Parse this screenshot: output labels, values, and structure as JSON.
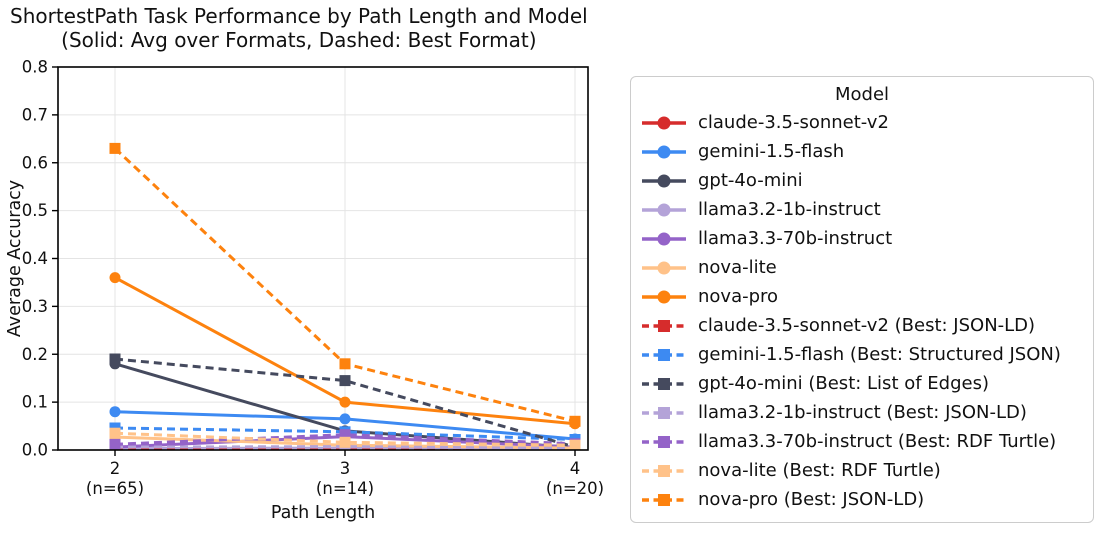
{
  "title": {
    "line1": "ShortestPath Task Performance by Path Length and Model",
    "line2": "(Solid: Avg over Formats, Dashed: Best Format)"
  },
  "chart_data": {
    "type": "line",
    "title": "ShortestPath Task Performance by Path Length and Model (Solid: Avg over Formats, Dashed: Best Format)",
    "xlabel": "Path Length",
    "ylabel": "Average Accuracy",
    "x": [
      2,
      3,
      4
    ],
    "x_tick_labels": [
      {
        "value": "2",
        "n": "(n=65)"
      },
      {
        "value": "3",
        "n": "(n=14)"
      },
      {
        "value": "4",
        "n": "(n=20)"
      }
    ],
    "ylim": [
      0.0,
      0.8
    ],
    "yticks": [
      0.0,
      0.1,
      0.2,
      0.3,
      0.4,
      0.5,
      0.6,
      0.7,
      0.8
    ],
    "grid": true,
    "legend": {
      "title": "Model",
      "position": "right"
    },
    "colors": {
      "claude-3.5-sonnet-v2": "#d62c2c",
      "gemini-1.5-flash": "#3d8af2",
      "gpt-4o-mini": "#454a5e",
      "llama3.2-1b-instruct": "#b4a3d8",
      "llama3.3-70b-instruct": "#9463c8",
      "nova-lite": "#ffc289",
      "nova-pro": "#fd820e"
    },
    "series": [
      {
        "label": "claude-3.5-sonnet-v2",
        "color": "#d62c2c",
        "style": "solid",
        "marker": "circle",
        "values": [
          0.0,
          0.0,
          0.0
        ]
      },
      {
        "label": "gemini-1.5-flash",
        "color": "#3d8af2",
        "style": "solid",
        "marker": "circle",
        "values": [
          0.08,
          0.065,
          0.023
        ]
      },
      {
        "label": "gpt-4o-mini",
        "color": "#454a5e",
        "style": "solid",
        "marker": "circle",
        "values": [
          0.18,
          0.04,
          0.005
        ]
      },
      {
        "label": "llama3.2-1b-instruct",
        "color": "#b4a3d8",
        "style": "solid",
        "marker": "circle",
        "values": [
          0.003,
          0.004,
          0.002
        ]
      },
      {
        "label": "llama3.3-70b-instruct",
        "color": "#9463c8",
        "style": "solid",
        "marker": "circle",
        "values": [
          0.006,
          0.028,
          0.006
        ]
      },
      {
        "label": "nova-lite",
        "color": "#ffc289",
        "style": "solid",
        "marker": "circle",
        "values": [
          0.027,
          0.01,
          0.004
        ]
      },
      {
        "label": "nova-pro",
        "color": "#fd820e",
        "style": "solid",
        "marker": "circle",
        "values": [
          0.36,
          0.1,
          0.055
        ]
      },
      {
        "label": "claude-3.5-sonnet-v2 (Best: JSON-LD)",
        "color": "#d62c2c",
        "style": "dashed",
        "marker": "square",
        "values": [
          0.0,
          0.0,
          0.0
        ]
      },
      {
        "label": "gemini-1.5-flash (Best: Structured JSON)",
        "color": "#3d8af2",
        "style": "dashed",
        "marker": "square",
        "values": [
          0.046,
          0.038,
          0.022
        ]
      },
      {
        "label": "gpt-4o-mini (Best: List of Edges)",
        "color": "#454a5e",
        "style": "dashed",
        "marker": "square",
        "values": [
          0.19,
          0.145,
          0.006
        ]
      },
      {
        "label": "llama3.2-1b-instruct (Best: JSON-LD)",
        "color": "#b4a3d8",
        "style": "dashed",
        "marker": "square",
        "values": [
          0.006,
          0.007,
          0.003
        ]
      },
      {
        "label": "llama3.3-70b-instruct (Best: RDF Turtle)",
        "color": "#9463c8",
        "style": "dashed",
        "marker": "square",
        "values": [
          0.012,
          0.032,
          0.013
        ]
      },
      {
        "label": "nova-lite (Best: RDF Turtle)",
        "color": "#ffc289",
        "style": "dashed",
        "marker": "square",
        "values": [
          0.035,
          0.016,
          0.01
        ]
      },
      {
        "label": "nova-pro (Best: JSON-LD)",
        "color": "#fd820e",
        "style": "dashed",
        "marker": "square",
        "values": [
          0.63,
          0.18,
          0.06
        ]
      }
    ]
  }
}
